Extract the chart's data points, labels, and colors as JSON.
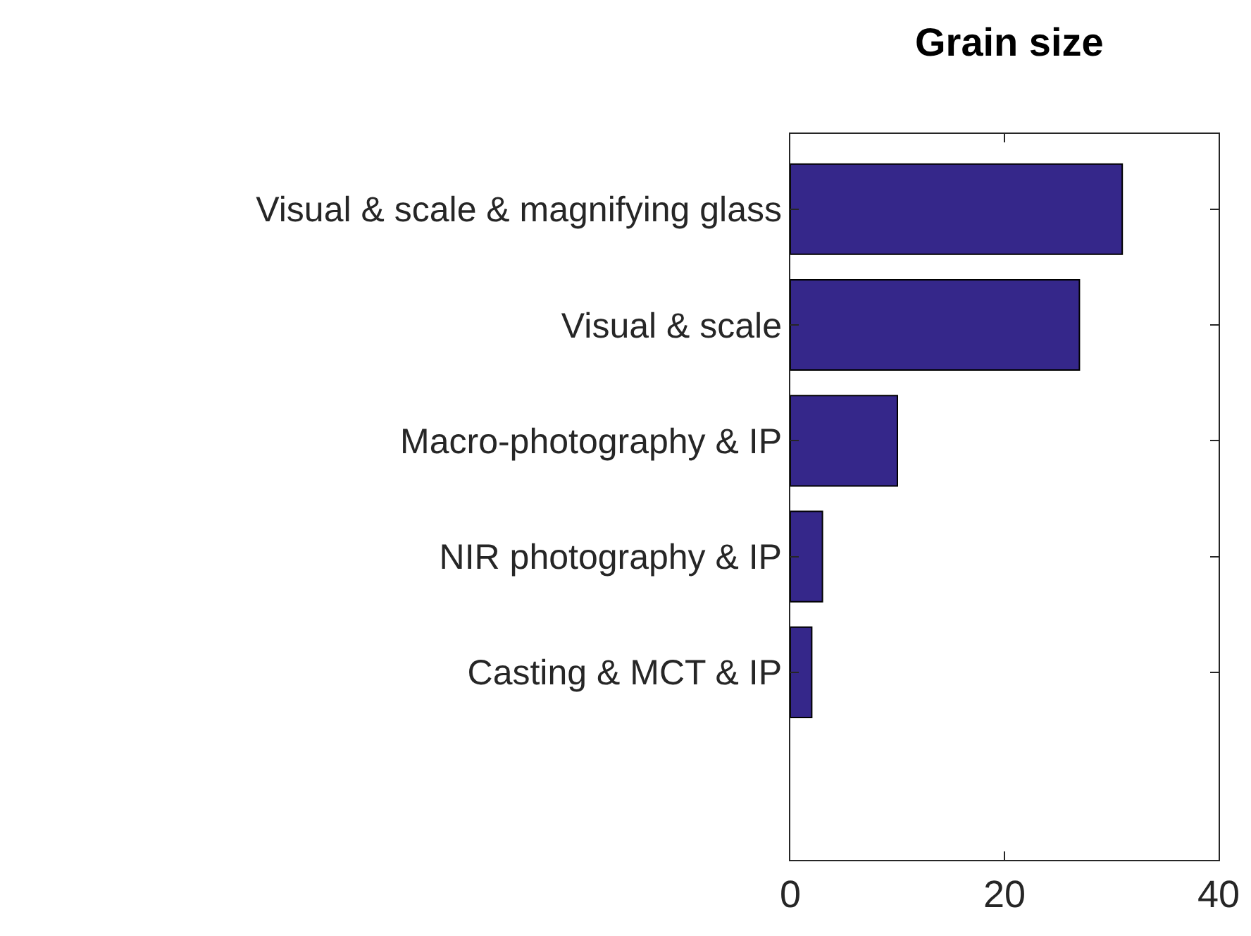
{
  "chart_data": {
    "type": "bar",
    "orientation": "horizontal",
    "title": "Grain size",
    "categories": [
      "Visual & scale & magnifying glass",
      "Visual & scale",
      "Macro-photography & IP",
      "NIR photography & IP",
      "Casting & MCT & IP",
      null
    ],
    "values": [
      31,
      27,
      10,
      3,
      2,
      null
    ],
    "color": "#35278a",
    "xlim": [
      0,
      40
    ],
    "xticks": [
      0,
      20,
      40
    ],
    "grid": false
  }
}
